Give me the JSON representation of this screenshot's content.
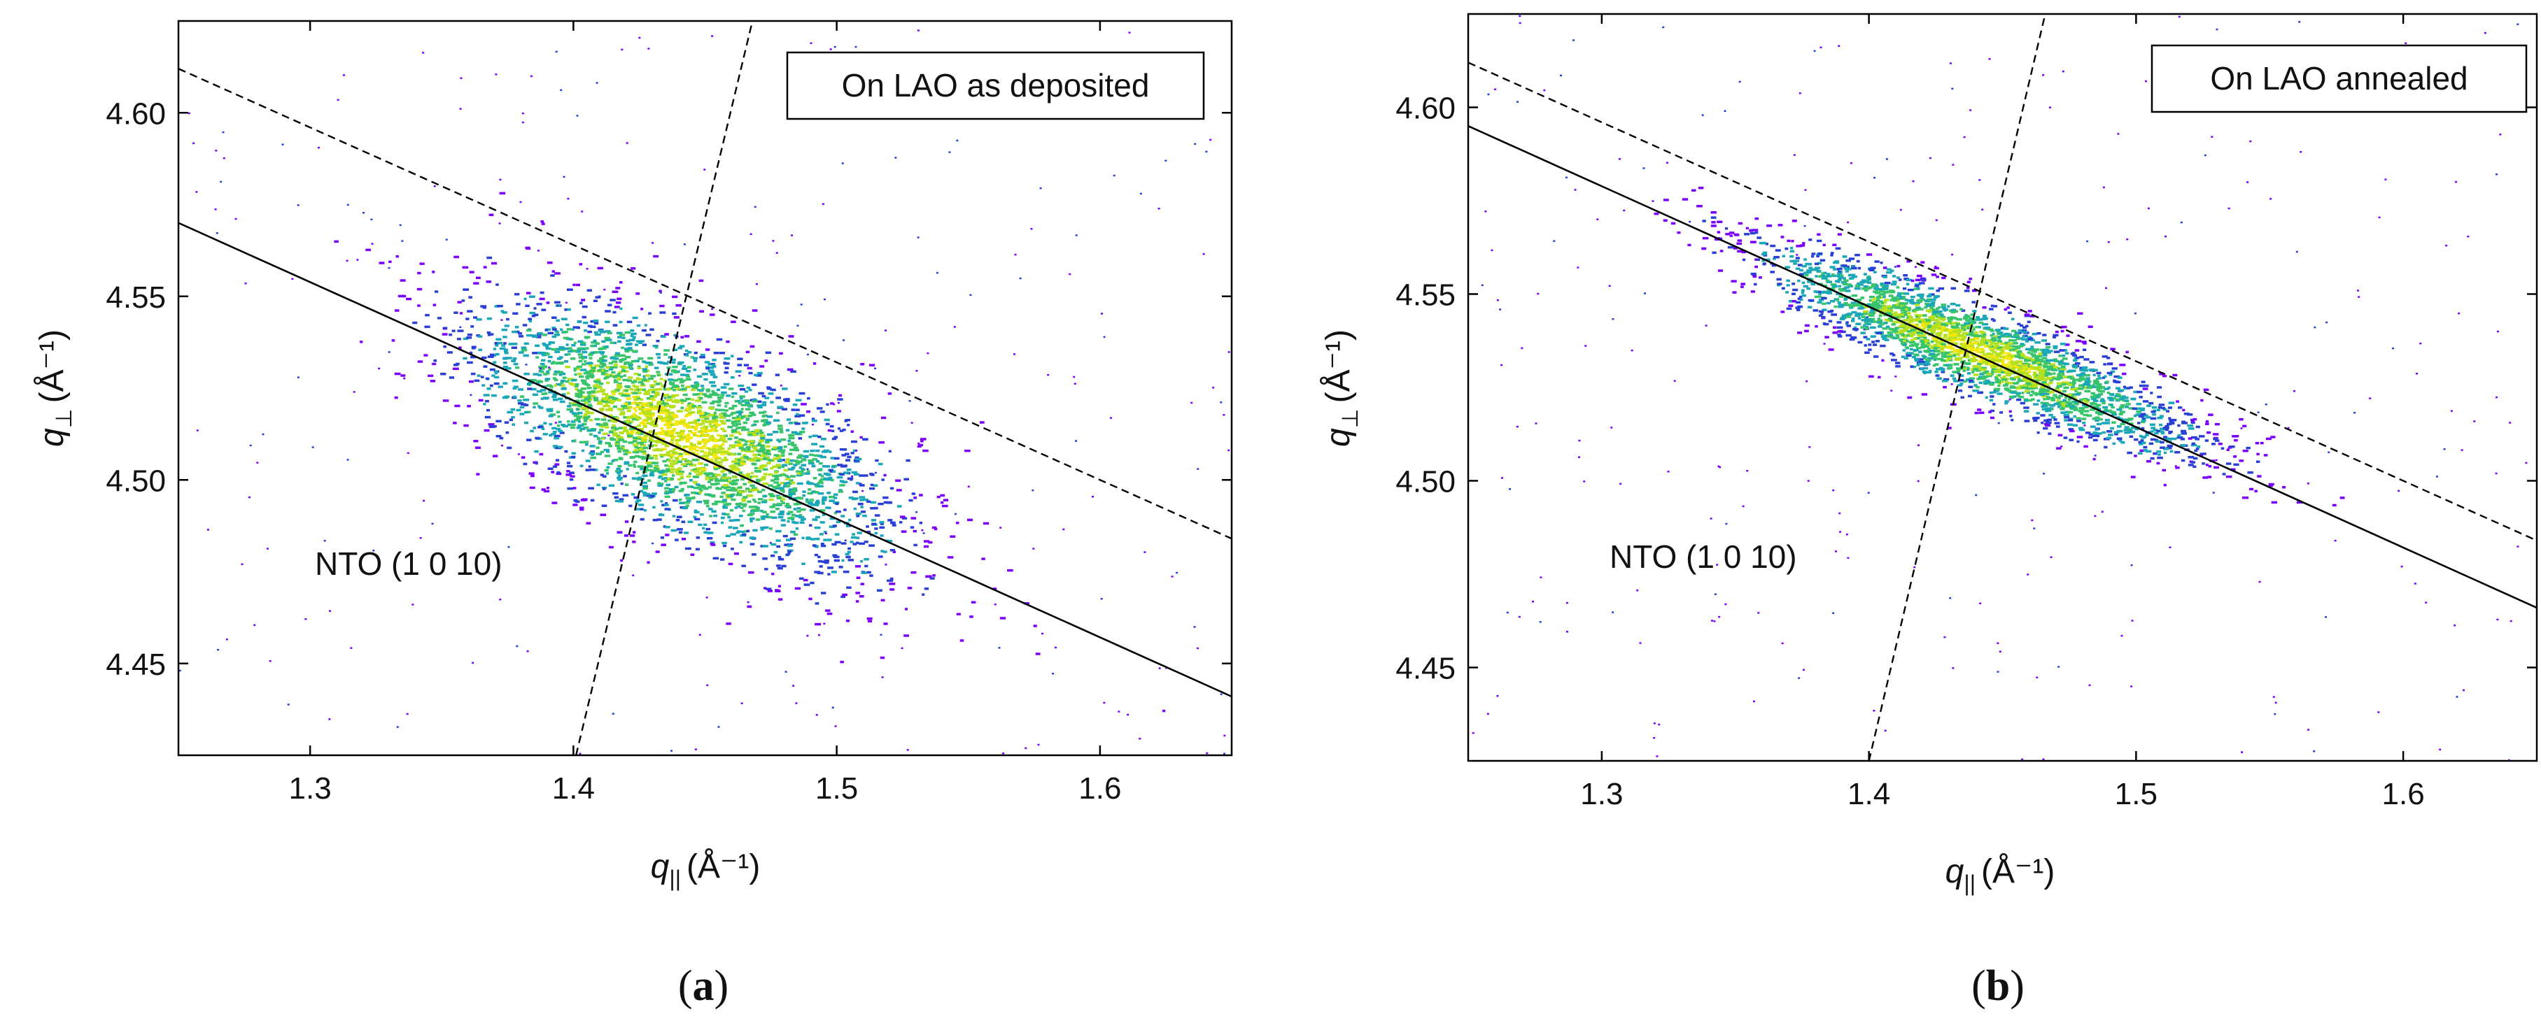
{
  "chart_data": [
    {
      "type": "scatter",
      "panel": "a",
      "caption": "a",
      "legend": "On LAO as deposited",
      "annotation": "NTO (1 0 10)",
      "xlabel": "q||",
      "xlabel_sub": "||",
      "ylabel": "q⊥",
      "ylabel_sub": "⊥",
      "unit": "(Å⁻¹)",
      "xlim": [
        1.25,
        1.65
      ],
      "ylim": [
        4.425,
        4.625
      ],
      "xticks": [
        1.3,
        1.4,
        1.5,
        1.6
      ],
      "xtick_labels": [
        "1.3",
        "1.4",
        "1.5",
        "1.6"
      ],
      "yticks": [
        4.45,
        4.5,
        4.55,
        4.6
      ],
      "ytick_labels": [
        "4.45",
        "4.50",
        "4.55",
        "4.60"
      ],
      "lines": [
        {
          "name": "solid",
          "style": "solid",
          "x": [
            1.25,
            1.65
          ],
          "y": [
            4.57,
            4.441
          ]
        },
        {
          "name": "dashed",
          "style": "dashed",
          "x": [
            1.25,
            1.65
          ],
          "y": [
            4.612,
            4.484
          ]
        },
        {
          "name": "dashed-steep",
          "style": "dashed",
          "x": [
            1.401,
            1.468
          ],
          "y": [
            4.425,
            4.625
          ]
        }
      ],
      "cloud": {
        "center_x": 1.44,
        "center_y": 4.513,
        "spread_x": 0.04,
        "spread_y": 0.013,
        "tilt": -0.3,
        "points": 3200,
        "seed": 11
      },
      "colorscale": [
        "#7a00ff",
        "#2a3fd6",
        "#1aa7b8",
        "#37c46a",
        "#b6e01d",
        "#f2e60a"
      ]
    },
    {
      "type": "scatter",
      "panel": "b",
      "caption": "b",
      "legend": "On LAO annealed",
      "annotation": "NTO (1 0 10)",
      "xlabel": "q||",
      "xlabel_sub": "||",
      "ylabel": "q⊥",
      "ylabel_sub": "⊥",
      "unit": "(Å⁻¹)",
      "xlim": [
        1.25,
        1.65
      ],
      "ylim": [
        4.425,
        4.625
      ],
      "xticks": [
        1.3,
        1.4,
        1.5,
        1.6
      ],
      "xtick_labels": [
        "1.3",
        "1.4",
        "1.5",
        "1.6"
      ],
      "yticks": [
        4.45,
        4.5,
        4.55,
        4.6
      ],
      "ytick_labels": [
        "4.45",
        "4.50",
        "4.55",
        "4.60"
      ],
      "lines": [
        {
          "name": "solid",
          "style": "solid",
          "x": [
            1.25,
            1.65
          ],
          "y": [
            4.595,
            4.466
          ]
        },
        {
          "name": "dashed",
          "style": "dashed",
          "x": [
            1.25,
            1.65
          ],
          "y": [
            4.612,
            4.484
          ]
        },
        {
          "name": "dashed-steep",
          "style": "dashed",
          "x": [
            1.4,
            1.466
          ],
          "y": [
            4.425,
            4.625
          ]
        }
      ],
      "cloud": {
        "center_x": 1.44,
        "center_y": 4.535,
        "spread_x": 0.04,
        "spread_y": 0.006,
        "tilt": -0.3,
        "points": 2600,
        "seed": 23
      },
      "colorscale": [
        "#7a00ff",
        "#2a3fd6",
        "#1aa7b8",
        "#37c46a",
        "#b6e01d",
        "#f2e60a"
      ]
    }
  ]
}
